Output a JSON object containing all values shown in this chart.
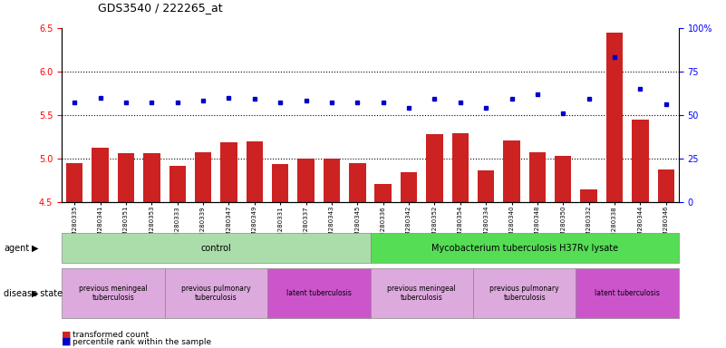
{
  "title": "GDS3540 / 222265_at",
  "samples": [
    "GSM280335",
    "GSM280341",
    "GSM280351",
    "GSM280353",
    "GSM280333",
    "GSM280339",
    "GSM280347",
    "GSM280349",
    "GSM280331",
    "GSM280337",
    "GSM280343",
    "GSM280345",
    "GSM280336",
    "GSM280342",
    "GSM280352",
    "GSM280354",
    "GSM280334",
    "GSM280340",
    "GSM280348",
    "GSM280350",
    "GSM280332",
    "GSM280338",
    "GSM280344",
    "GSM280346"
  ],
  "bar_values": [
    4.95,
    5.12,
    5.06,
    5.06,
    4.91,
    5.07,
    5.18,
    5.19,
    4.93,
    5.0,
    5.0,
    4.95,
    4.71,
    4.84,
    5.28,
    5.29,
    4.86,
    5.21,
    5.07,
    5.03,
    4.64,
    6.44,
    5.44,
    4.87
  ],
  "dot_values": [
    57,
    60,
    57,
    57,
    57,
    58,
    60,
    59,
    57,
    58,
    57,
    57,
    57,
    54,
    59,
    57,
    54,
    59,
    62,
    51,
    59,
    83,
    65,
    56
  ],
  "bar_color": "#cc2222",
  "dot_color": "#0000cc",
  "ylim_left": [
    4.5,
    6.5
  ],
  "ylim_right": [
    0,
    100
  ],
  "yticks_left": [
    4.5,
    5.0,
    5.5,
    6.0,
    6.5
  ],
  "yticks_right": [
    0,
    25,
    50,
    75,
    100
  ],
  "ytick_labels_right": [
    "0",
    "25",
    "50",
    "75",
    "100%"
  ],
  "hlines": [
    5.0,
    5.5,
    6.0
  ],
  "agent_groups": [
    {
      "label": "control",
      "start": 0,
      "end": 11,
      "color": "#aaddaa"
    },
    {
      "label": "Mycobacterium tuberculosis H37Rv lysate",
      "start": 12,
      "end": 23,
      "color": "#55dd55"
    }
  ],
  "disease_groups": [
    {
      "label": "previous meningeal\ntuberculosis",
      "start": 0,
      "end": 3,
      "color": "#ddaadd"
    },
    {
      "label": "previous pulmonary\ntuberculosis",
      "start": 4,
      "end": 7,
      "color": "#ddaadd"
    },
    {
      "label": "latent tuberculosis",
      "start": 8,
      "end": 11,
      "color": "#cc55cc"
    },
    {
      "label": "previous meningeal\ntuberculosis",
      "start": 12,
      "end": 15,
      "color": "#ddaadd"
    },
    {
      "label": "previous pulmonary\ntuberculosis",
      "start": 16,
      "end": 19,
      "color": "#ddaadd"
    },
    {
      "label": "latent tuberculosis",
      "start": 20,
      "end": 23,
      "color": "#cc55cc"
    }
  ]
}
